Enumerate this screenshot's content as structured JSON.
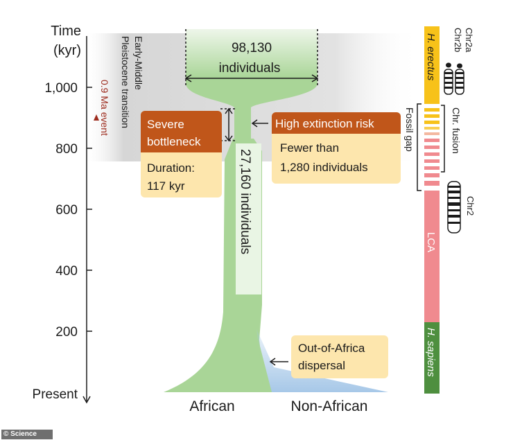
{
  "axis": {
    "title_line1": "Time",
    "title_line2": "(kyr)",
    "ticks": [
      "1,000",
      "800",
      "600",
      "400",
      "200",
      "Present"
    ]
  },
  "transition": {
    "label_line1": "Early-Middle",
    "label_line2": "Pleistocene transition"
  },
  "event": {
    "label": "0.9 Ma event",
    "color": "#9c2a1c"
  },
  "ancestral": {
    "line1": "98,130",
    "line2": "individuals"
  },
  "bottleneck": {
    "title_line1": "Severe",
    "title_line2": "bottleneck",
    "duration_line1": "Duration:",
    "duration_line2": "117 kyr"
  },
  "risk": {
    "title": "High extinction risk",
    "line1": "Fewer than",
    "line2": "1,280 individuals"
  },
  "stem": {
    "label": "27,160 individuals"
  },
  "dispersal": {
    "line1": "Out-of-Africa",
    "line2": "dispersal"
  },
  "populations": {
    "african": "African",
    "non_african": "Non-African"
  },
  "lineage_bar": {
    "erectus": "H. erectus",
    "lca": "LCA",
    "sapiens": "H. sapiens",
    "fossil_gap": "Fossil gap",
    "chr2a": "Chr2a",
    "chr2b": "Chr2b",
    "fusion": "Chr. fusion",
    "chr2": "Chr2"
  },
  "credit": "© Science",
  "colors": {
    "green": "#a9d597",
    "blue": "#a7c8e8",
    "orange": "#c0561a",
    "cream": "#fde6ad",
    "yellow": "#f7c21a",
    "pink": "#f08a8f",
    "dark_green": "#4e8f3f",
    "gray_band": "#d9d9d9"
  }
}
